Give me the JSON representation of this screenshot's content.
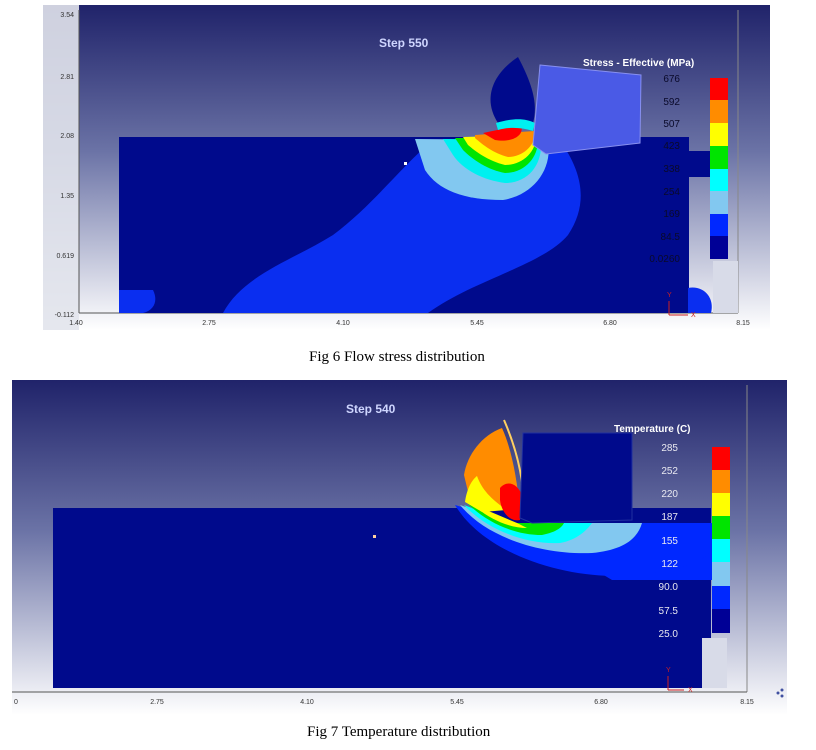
{
  "figure1": {
    "step_label": "Step  550",
    "legend_title": "Stress - Effective (MPa)",
    "legend_values": [
      "676",
      "592",
      "507",
      "423",
      "338",
      "254",
      "169",
      "84.5",
      "0.0260"
    ],
    "legend_colors": [
      "#ff0000",
      "#ff8c00",
      "#ffff00",
      "#00e400",
      "#00ffff",
      "#82c8f0",
      "#0028ff",
      "#000096"
    ],
    "y_ticks": [
      "3.54",
      "2.81",
      "2.08",
      "1.35",
      "0.619",
      "-0.112"
    ],
    "x_ticks": [
      "1.40",
      "2.75",
      "4.10",
      "5.45",
      "6.80",
      "8.15"
    ],
    "axis_y": "Y",
    "axis_x": "X",
    "caption": "Fig 6  Flow stress distribution"
  },
  "figure2": {
    "step_label": "Step  540",
    "legend_title": "Temperature (C)",
    "legend_values": [
      "285",
      "252",
      "220",
      "187",
      "155",
      "122",
      "90.0",
      "57.5",
      "25.0"
    ],
    "legend_colors": [
      "#ff0000",
      "#ff8c00",
      "#ffff00",
      "#00e400",
      "#00ffff",
      "#82c8f0",
      "#0028ff",
      "#000096"
    ],
    "x_ticks": [
      "0",
      "2.75",
      "4.10",
      "5.45",
      "6.80",
      "8.15"
    ],
    "axis_y": "Y",
    "axis_x": "X",
    "caption": "Fig 7 Temperature distribution"
  }
}
